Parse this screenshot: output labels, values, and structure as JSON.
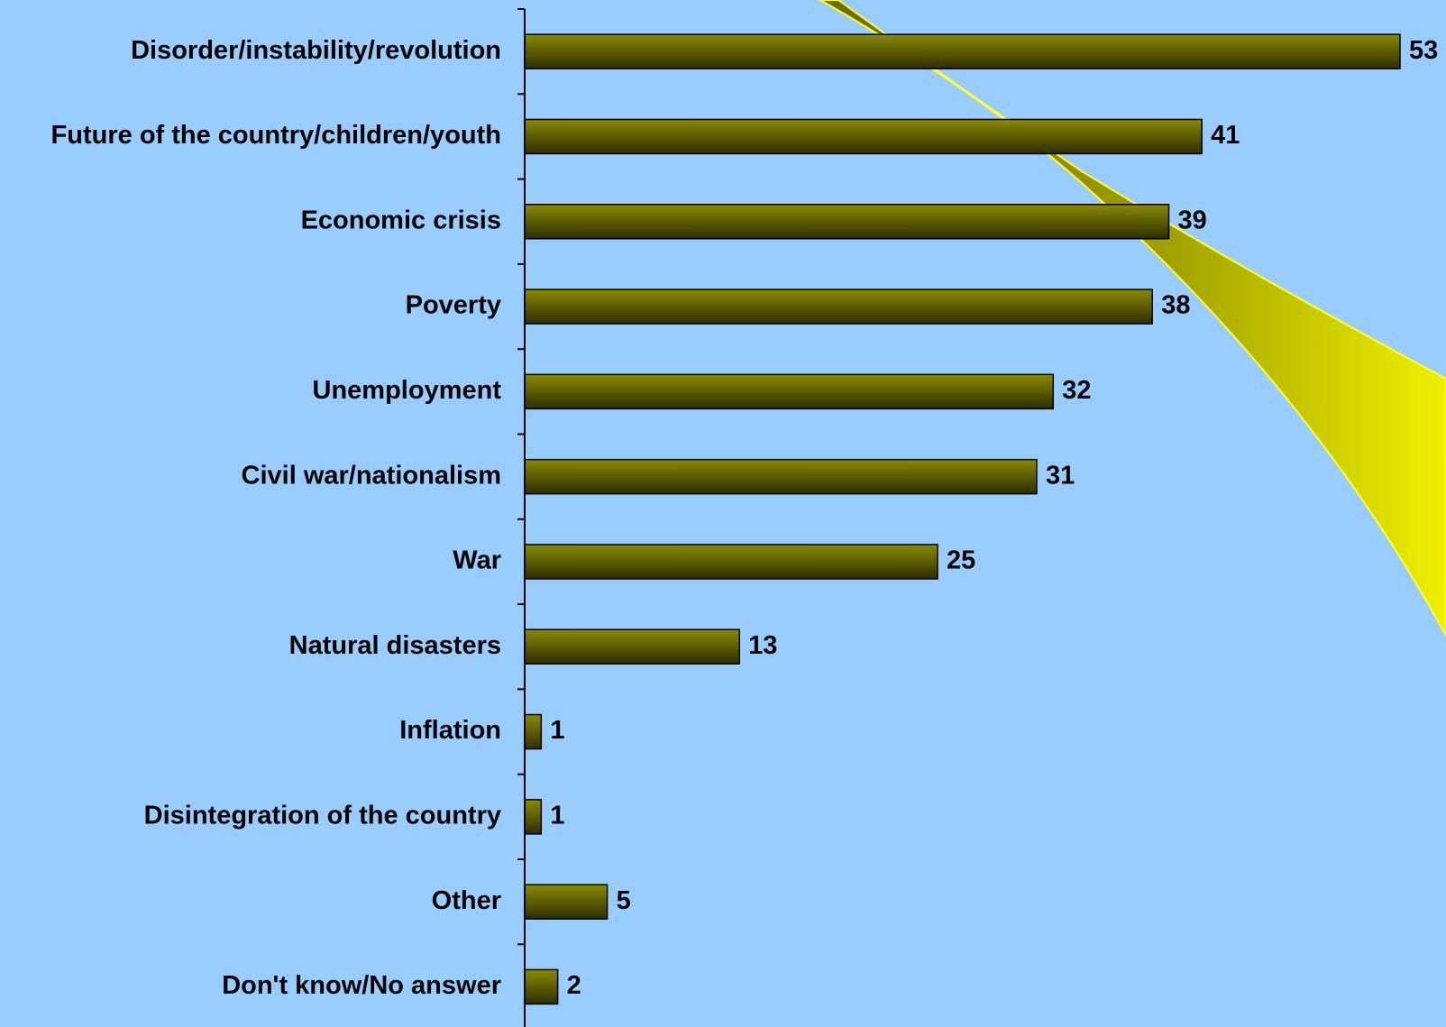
{
  "chart_data": {
    "type": "bar",
    "orientation": "horizontal",
    "categories": [
      "Disorder/instability/revolution",
      "Future of the country/children/youth",
      "Economic crisis",
      "Poverty",
      "Unemployment",
      "Civil war/nationalism",
      "War",
      "Natural disasters",
      "Inflation",
      "Disintegration of the country",
      "Other",
      "Don't know/No answer"
    ],
    "values": [
      53,
      41,
      39,
      38,
      32,
      31,
      25,
      13,
      1,
      1,
      5,
      2
    ],
    "color": "#7a7a00"
  }
}
